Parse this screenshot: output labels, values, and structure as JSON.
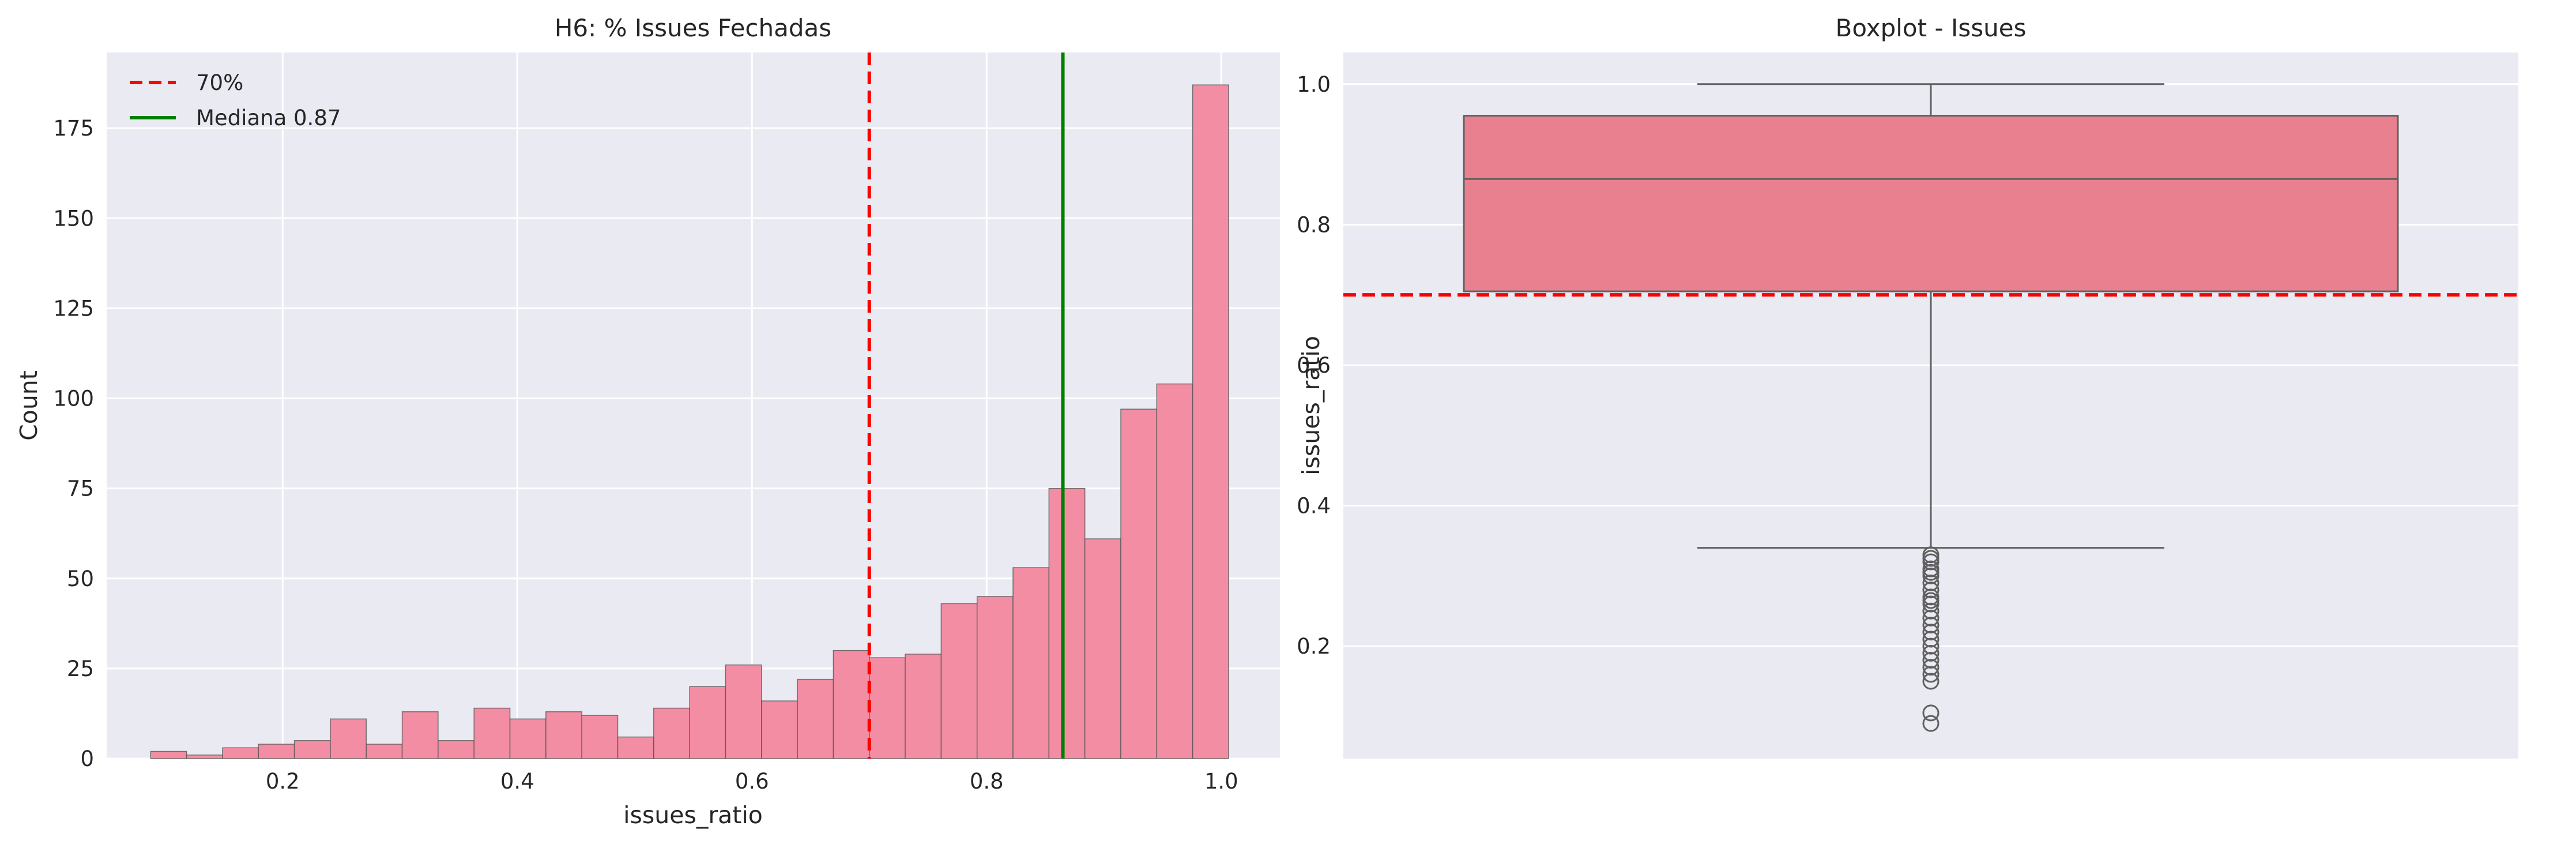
{
  "chart_data": [
    {
      "type": "histogram",
      "title": "H6: % Issues Fechadas",
      "xlabel": "issues_ratio",
      "ylabel": "Count",
      "xlim": [
        0.05,
        1.05
      ],
      "ylim": [
        0,
        196
      ],
      "xticks": [
        0.2,
        0.4,
        0.6,
        0.8,
        1.0
      ],
      "xtick_labels": [
        "0.2",
        "0.4",
        "0.6",
        "0.8",
        "1.0"
      ],
      "yticks": [
        0,
        25,
        50,
        75,
        100,
        125,
        150,
        175
      ],
      "ytick_labels": [
        "0",
        "25",
        "50",
        "75",
        "100",
        "125",
        "150",
        "175"
      ],
      "bin_start": 0.0875,
      "bin_width": 0.030625,
      "values": [
        2,
        1,
        3,
        4,
        5,
        11,
        4,
        13,
        5,
        14,
        11,
        13,
        12,
        6,
        14,
        20,
        26,
        16,
        22,
        30,
        28,
        29,
        43,
        45,
        53,
        75,
        61,
        97,
        104,
        187
      ],
      "grid": true,
      "bar_color": "#f28da3",
      "vlines": [
        {
          "name": "70%",
          "x": 0.7,
          "color": "#ff0000",
          "style": "dashed"
        },
        {
          "name": "Mediana 0.87",
          "x": 0.865,
          "color": "#008000",
          "style": "solid"
        }
      ],
      "legend": {
        "position": "top-left",
        "entries": [
          {
            "label": "70%",
            "color": "#ff0000",
            "style": "dashed"
          },
          {
            "label": "Mediana 0.87",
            "color": "#008000",
            "style": "solid"
          }
        ]
      }
    },
    {
      "type": "box",
      "title": "Boxplot - Issues",
      "xlabel": "",
      "ylabel": "issues_ratio",
      "ylim": [
        0.04,
        1.045
      ],
      "yticks": [
        0.2,
        0.4,
        0.6,
        0.8,
        1.0
      ],
      "ytick_labels": [
        "0.2",
        "0.4",
        "0.6",
        "0.8",
        "1.0"
      ],
      "box": {
        "whisker_low": 0.34,
        "q1": 0.705,
        "median": 0.865,
        "q3": 0.955,
        "whisker_high": 1.0
      },
      "outliers": [
        0.33,
        0.325,
        0.32,
        0.31,
        0.305,
        0.3,
        0.29,
        0.28,
        0.27,
        0.265,
        0.26,
        0.25,
        0.24,
        0.23,
        0.22,
        0.21,
        0.2,
        0.19,
        0.18,
        0.17,
        0.16,
        0.15,
        0.105,
        0.09
      ],
      "hline": {
        "y": 0.7,
        "color": "#ff0000",
        "style": "dashed"
      },
      "box_color": "#e8808f",
      "grid": true
    }
  ]
}
